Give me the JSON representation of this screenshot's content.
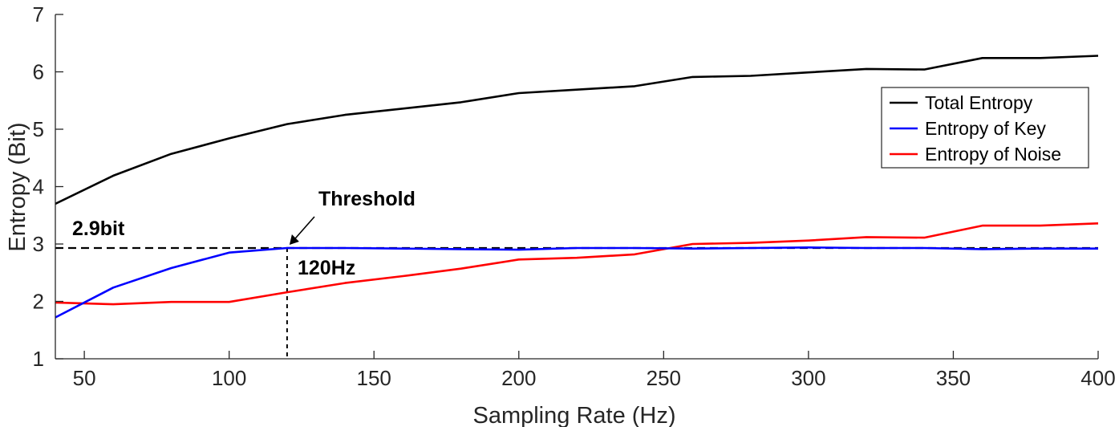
{
  "chart_data": {
    "type": "line",
    "xlabel": "Sampling Rate (Hz)",
    "ylabel": "Entropy (Bit)",
    "xlim": [
      40,
      400
    ],
    "ylim": [
      1,
      7
    ],
    "xticks": [
      50,
      100,
      150,
      200,
      250,
      300,
      350,
      400
    ],
    "yticks": [
      1,
      2,
      3,
      4,
      5,
      6,
      7
    ],
    "legend_position": "top-right",
    "series": [
      {
        "name": "Total Entropy",
        "color": "#000000",
        "x": [
          40,
          60,
          80,
          100,
          120,
          140,
          160,
          180,
          200,
          220,
          240,
          260,
          280,
          300,
          320,
          340,
          360,
          380,
          400
        ],
        "y": [
          3.7,
          4.19,
          4.57,
          4.84,
          5.09,
          5.25,
          5.36,
          5.47,
          5.63,
          5.69,
          5.75,
          5.91,
          5.93,
          5.99,
          6.05,
          6.04,
          6.24,
          6.24,
          6.28
        ]
      },
      {
        "name": "Entropy of Key",
        "color": "#0000ff",
        "x": [
          40,
          60,
          80,
          100,
          120,
          140,
          160,
          180,
          200,
          220,
          240,
          260,
          280,
          300,
          320,
          340,
          360,
          380,
          400
        ],
        "y": [
          1.72,
          2.24,
          2.58,
          2.85,
          2.93,
          2.93,
          2.92,
          2.91,
          2.9,
          2.93,
          2.93,
          2.92,
          2.93,
          2.94,
          2.93,
          2.93,
          2.91,
          2.92,
          2.92
        ]
      },
      {
        "name": "Entropy of Noise",
        "color": "#ff0000",
        "x": [
          40,
          60,
          80,
          100,
          120,
          140,
          160,
          180,
          200,
          220,
          240,
          260,
          280,
          300,
          320,
          340,
          360,
          380,
          400
        ],
        "y": [
          1.98,
          1.95,
          1.99,
          1.99,
          2.16,
          2.32,
          2.44,
          2.57,
          2.73,
          2.76,
          2.82,
          3.0,
          3.02,
          3.06,
          3.12,
          3.11,
          3.32,
          3.32,
          3.36
        ]
      }
    ],
    "reference_lines": {
      "threshold_y": 2.93,
      "threshold_x": 120,
      "color": "#000000"
    },
    "annotations": {
      "threshold_label": "Threshold",
      "y_value_label": "2.9bit",
      "x_value_label": "120Hz"
    }
  }
}
